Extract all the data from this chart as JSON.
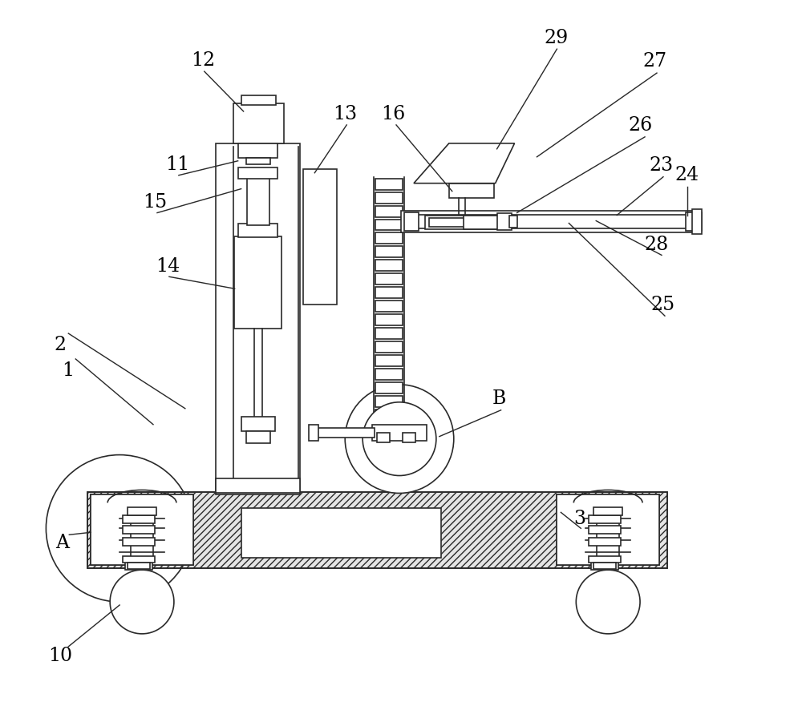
{
  "bg": "#ffffff",
  "lc": "#2a2a2a",
  "lw": 1.2,
  "fw": 10.0,
  "fh": 8.76
}
